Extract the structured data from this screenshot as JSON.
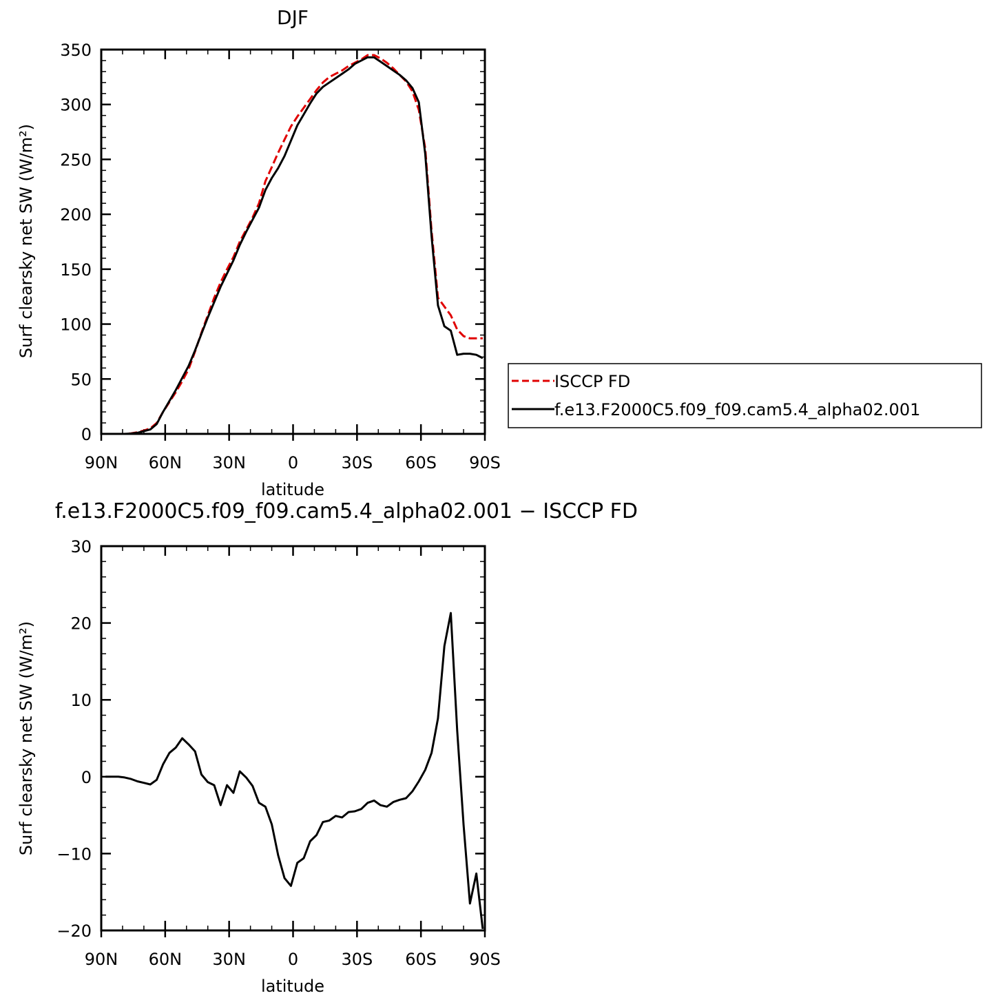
{
  "chart_data": [
    {
      "type": "line",
      "title": "DJF",
      "xlabel": "latitude",
      "ylabel": "Surf clearsky net SW (W/m²)",
      "ylim": [
        0,
        350
      ],
      "xlim": [
        -90,
        90
      ],
      "yticks": [
        "0",
        "50",
        "100",
        "150",
        "200",
        "250",
        "300",
        "350"
      ],
      "xticks": [
        "90N",
        "60N",
        "30N",
        "0",
        "30S",
        "60S",
        "90S"
      ],
      "legend": {
        "position": "right"
      },
      "series": [
        {
          "name": "ISCCP FD",
          "color": "#e00000",
          "dash": true,
          "x": [
            -88,
            -85,
            -82,
            -79,
            -76,
            -73,
            -70,
            -67,
            -64,
            -61,
            -58,
            -55,
            -52,
            -49,
            -46,
            -43,
            -40,
            -37,
            -34,
            -31,
            -28,
            -25,
            -22,
            -19,
            -16,
            -13,
            -10,
            -7,
            -4,
            -1,
            2,
            5,
            8,
            11,
            14,
            17,
            20,
            23,
            26,
            29,
            32,
            35,
            38,
            41,
            44,
            47,
            50,
            53,
            56,
            59,
            62,
            65,
            68,
            71,
            74,
            77,
            80,
            83,
            86,
            89
          ],
          "values": [
            0,
            0,
            0,
            0,
            0.5,
            1.5,
            3,
            5,
            10,
            20,
            29,
            38,
            48,
            59,
            75,
            92,
            108,
            124,
            138,
            150,
            161,
            175,
            186,
            197,
            210,
            230,
            243,
            256,
            268,
            280,
            289,
            297,
            305,
            313,
            320,
            325,
            328,
            331,
            335,
            338,
            341,
            345,
            345,
            342,
            338,
            333,
            327,
            321,
            312,
            295,
            260,
            185,
            124,
            116,
            108,
            95,
            89,
            87,
            87,
            87
          ]
        },
        {
          "name": "f.e13.F2000C5.f09_f09.cam5.4_alpha02.001",
          "color": "#000000",
          "dash": false,
          "x": [
            -88,
            -85,
            -82,
            -79,
            -76,
            -73,
            -70,
            -67,
            -64,
            -61,
            -58,
            -55,
            -52,
            -49,
            -46,
            -43,
            -40,
            -37,
            -34,
            -31,
            -28,
            -25,
            -22,
            -19,
            -16,
            -13,
            -10,
            -7,
            -4,
            -1,
            2,
            5,
            8,
            11,
            14,
            17,
            20,
            23,
            26,
            29,
            32,
            35,
            38,
            41,
            44,
            47,
            50,
            53,
            56,
            59,
            62,
            65,
            68,
            71,
            74,
            77,
            80,
            83,
            86,
            89
          ],
          "values": [
            0,
            0,
            0,
            0,
            0.3,
            1,
            2.5,
            4,
            9,
            20,
            30,
            40,
            51,
            62,
            76,
            91,
            106,
            120,
            134,
            146,
            158,
            172,
            184,
            195,
            206,
            222,
            233,
            242,
            253,
            267,
            281,
            291,
            301,
            310,
            316,
            320,
            324,
            328,
            332,
            337,
            340,
            343,
            343,
            339,
            335,
            331,
            327,
            322,
            315,
            302,
            255,
            180,
            117,
            98,
            94,
            72,
            73,
            73,
            72,
            69
          ]
        }
      ]
    },
    {
      "type": "line",
      "title": "f.e13.F2000C5.f09_f09.cam5.4_alpha02.001 − ISCCP FD",
      "xlabel": "latitude",
      "ylabel": "Surf clearsky net SW (W/m²)",
      "ylim": [
        -20,
        30
      ],
      "xlim": [
        -90,
        90
      ],
      "yticks": [
        "−20",
        "−10",
        "0",
        "10",
        "20",
        "30"
      ],
      "xticks": [
        "90N",
        "60N",
        "30N",
        "0",
        "30S",
        "60S",
        "90S"
      ],
      "series": [
        {
          "color": "#000000",
          "dash": false,
          "x": [
            -88,
            -85,
            -82,
            -79,
            -76,
            -73,
            -70,
            -67,
            -64,
            -61,
            -58,
            -55,
            -52,
            -49,
            -46,
            -43,
            -40,
            -37,
            -34,
            -31,
            -28,
            -25,
            -22,
            -19,
            -16,
            -13,
            -10,
            -7,
            -4,
            -1,
            2,
            5,
            8,
            11,
            14,
            17,
            20,
            23,
            26,
            29,
            32,
            35,
            38,
            41,
            44,
            47,
            50,
            53,
            56,
            59,
            62,
            65,
            68,
            71,
            74,
            77,
            80,
            83,
            86,
            89
          ],
          "values": [
            0,
            0,
            0,
            -0.1,
            -0.3,
            -0.6,
            -0.8,
            -1,
            -0.4,
            1.6,
            3.1,
            3.8,
            5.0,
            4.2,
            3.3,
            0.3,
            -0.7,
            -1.1,
            -3.7,
            -1.1,
            -2.1,
            0.7,
            -0.1,
            -1.2,
            -3.4,
            -3.9,
            -6.2,
            -10.2,
            -13.2,
            -14.2,
            -11.2,
            -10.6,
            -8.4,
            -7.6,
            -5.9,
            -5.7,
            -5.1,
            -5.3,
            -4.6,
            -4.5,
            -4.2,
            -3.4,
            -3.1,
            -3.7,
            -3.9,
            -3.3,
            -3.0,
            -2.8,
            -1.9,
            -0.6,
            0.9,
            3.1,
            7.6,
            17.0,
            21.3,
            6.0,
            -6.3,
            -16.5,
            -12.6,
            -19.8
          ]
        }
      ]
    }
  ]
}
